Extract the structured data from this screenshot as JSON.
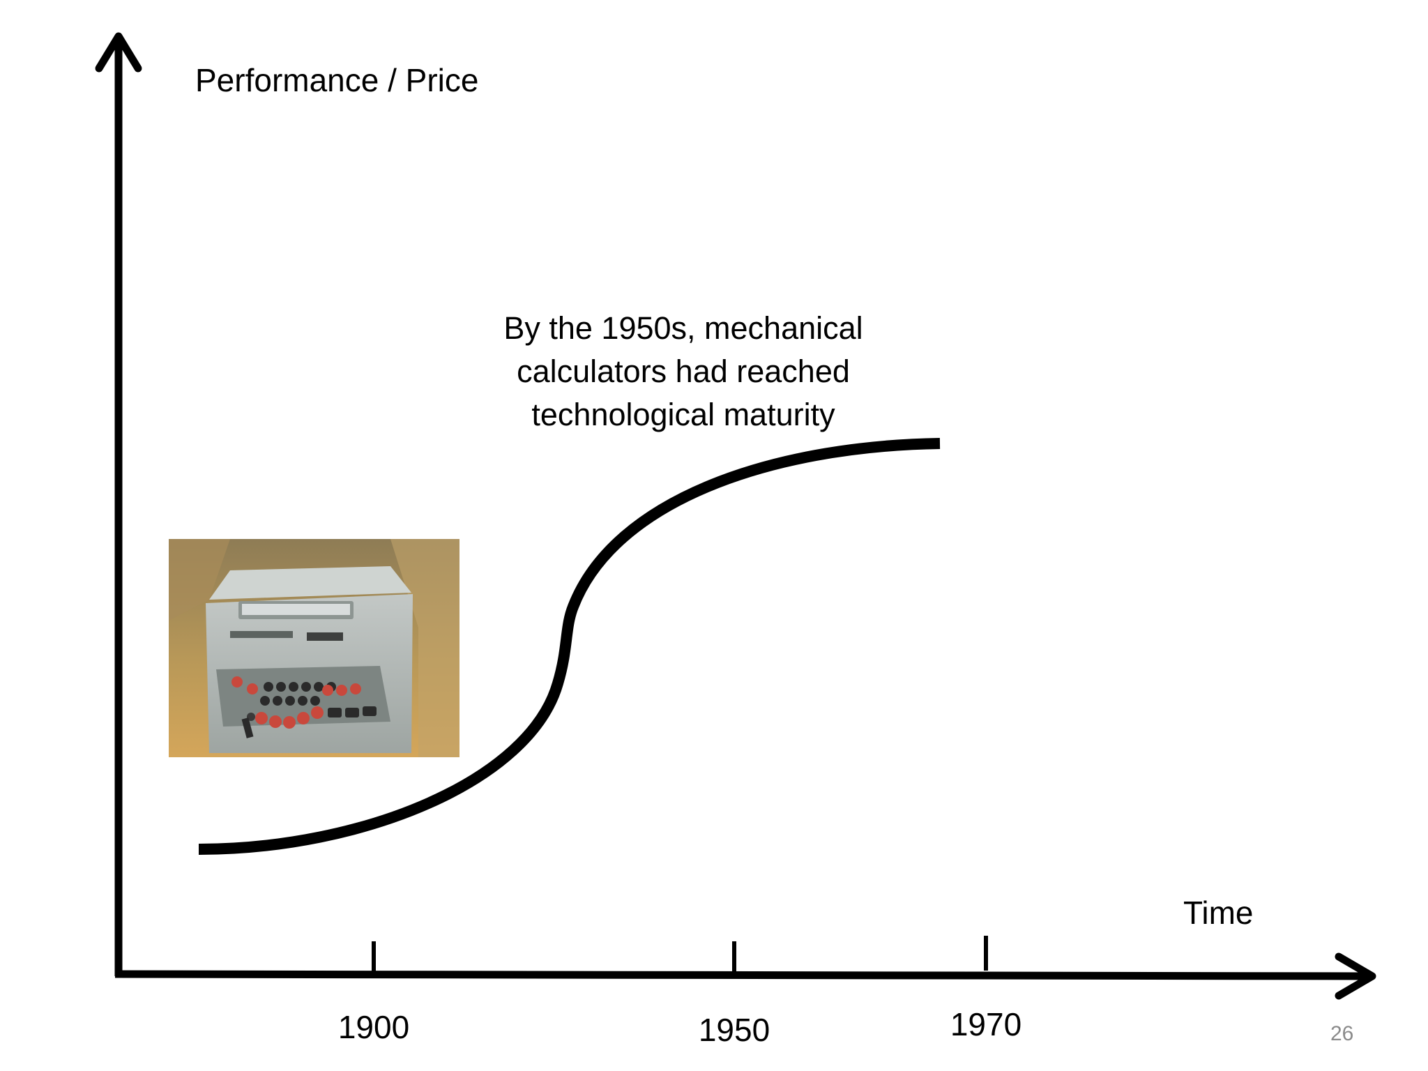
{
  "slide": {
    "y_axis_label": "Performance / Price",
    "x_axis_label": "Time",
    "annotation_lines": [
      "By the 1950s, mechanical",
      "calculators had reached",
      "technological maturity"
    ],
    "page_number": "26"
  },
  "chart_data": {
    "type": "line",
    "title": "",
    "xlabel": "Time",
    "ylabel": "Performance / Price",
    "x_ticks": [
      "1900",
      "1950",
      "1970"
    ],
    "series": [
      {
        "shape": "s-curve",
        "description_points": "low and flat at start, steep rise in middle, plateau near 1950s-1970"
      }
    ],
    "annotation": "By the 1950s, mechanical calculators had reached technological maturity"
  },
  "image": {
    "subject": "mechanical-calculator-photo",
    "colors": {
      "background_top": "#9c8656",
      "background_bottom": "#d2a55b",
      "body": "#b2b8b5",
      "body_shadow": "#8f9693",
      "keys_red": "#c9483c",
      "keys_dark": "#2a2a2a"
    }
  },
  "colors": {
    "axis": "#000000",
    "curve": "#000000",
    "page_number": "#8a8a8a"
  }
}
